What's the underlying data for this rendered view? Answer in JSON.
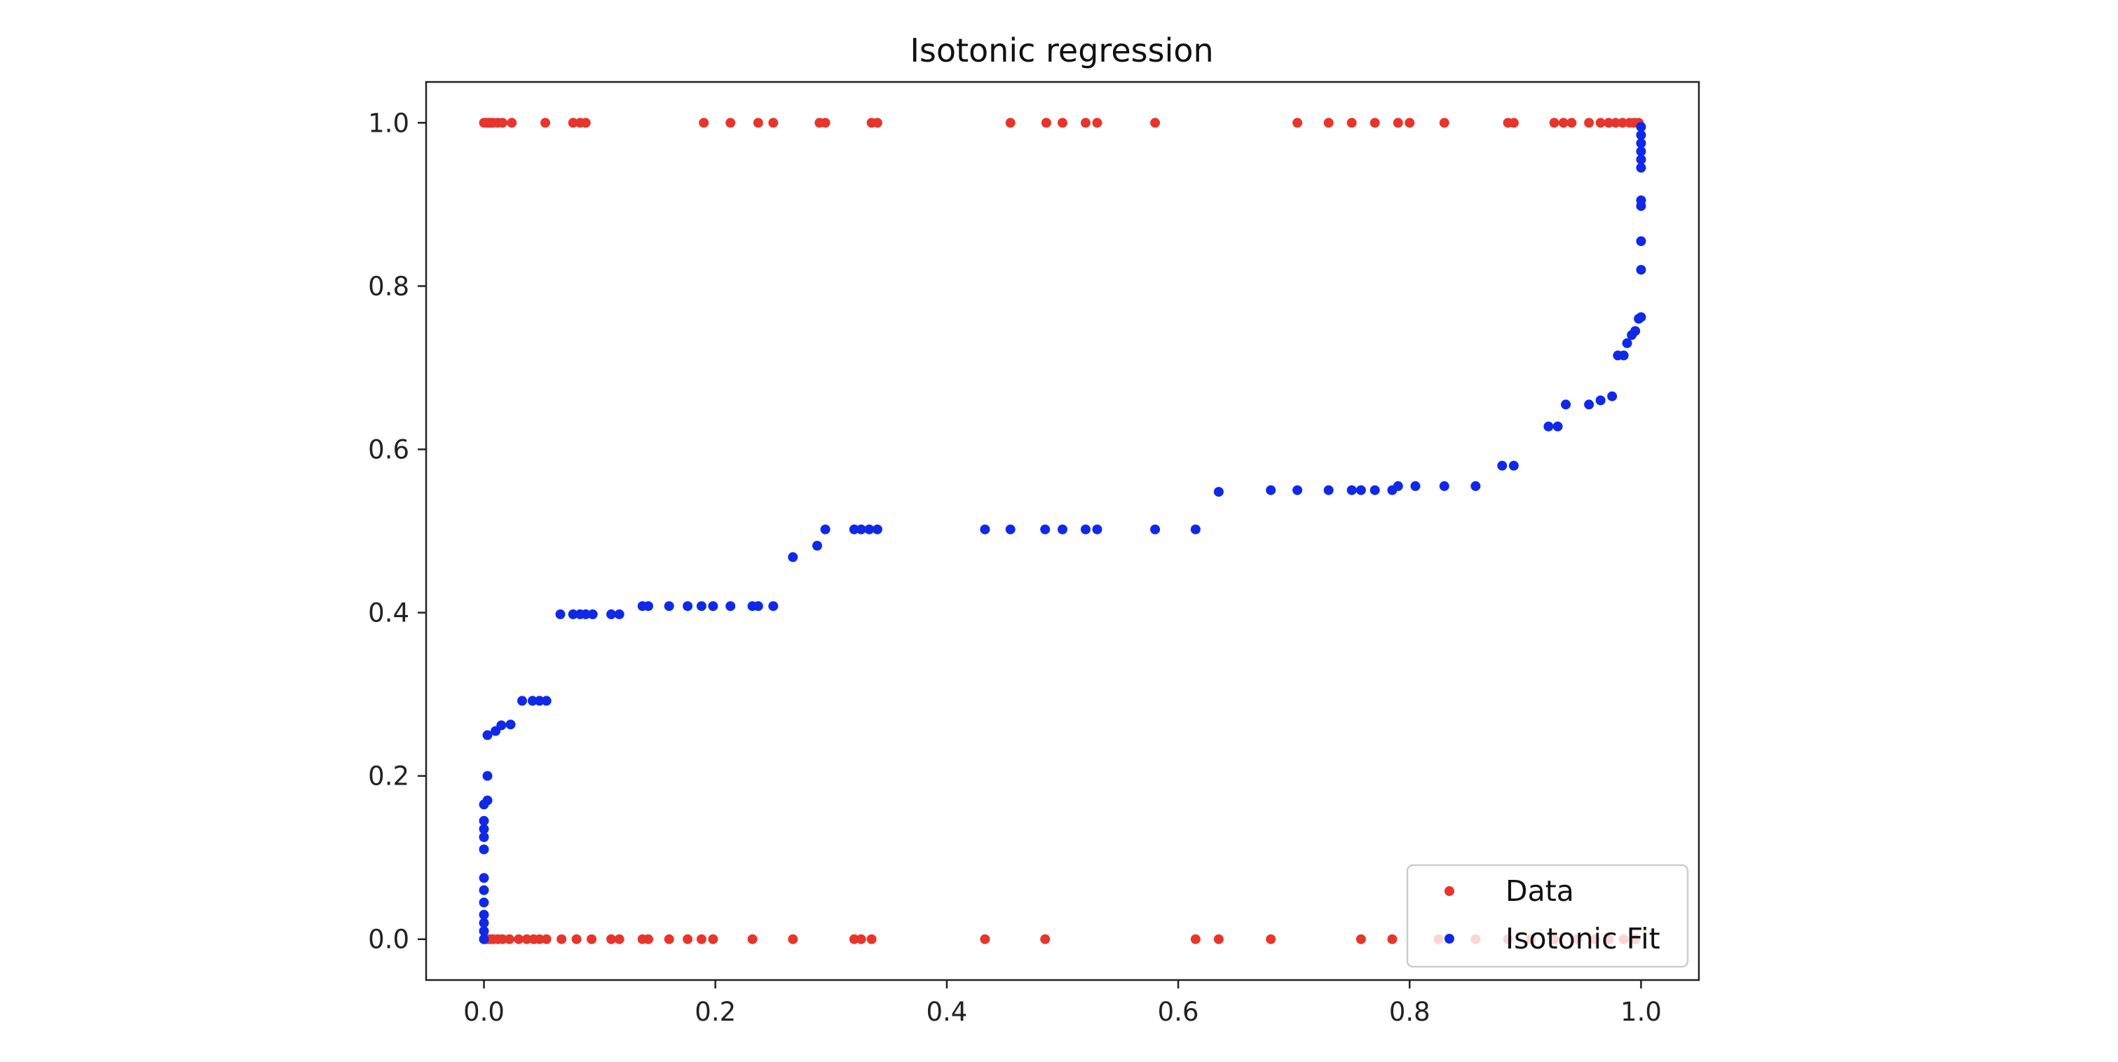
{
  "chart_data": {
    "type": "scatter",
    "title": "Isotonic regression",
    "xlabel": "",
    "ylabel": "",
    "xlim": [
      -0.05,
      1.05
    ],
    "ylim": [
      -0.05,
      1.05
    ],
    "xticks": [
      0.0,
      0.2,
      0.4,
      0.6,
      0.8,
      1.0
    ],
    "yticks": [
      0.0,
      0.2,
      0.4,
      0.6,
      0.8,
      1.0
    ],
    "xtick_labels": [
      "0.0",
      "0.2",
      "0.4",
      "0.6",
      "0.8",
      "1.0"
    ],
    "ytick_labels": [
      "0.0",
      "0.2",
      "0.4",
      "0.6",
      "0.8",
      "1.0"
    ],
    "grid": false,
    "legend": {
      "position": "lower right",
      "entries": [
        "Data",
        "Isotonic Fit"
      ]
    },
    "series": [
      {
        "name": "Data",
        "color": "#e8352b",
        "points": [
          [
            0.0,
            1
          ],
          [
            0.002,
            1
          ],
          [
            0.004,
            1
          ],
          [
            0.006,
            1
          ],
          [
            0.008,
            1
          ],
          [
            0.012,
            1
          ],
          [
            0.016,
            1
          ],
          [
            0.024,
            1
          ],
          [
            0.053,
            1
          ],
          [
            0.077,
            1
          ],
          [
            0.083,
            1
          ],
          [
            0.088,
            1
          ],
          [
            0.19,
            1
          ],
          [
            0.213,
            1
          ],
          [
            0.237,
            1
          ],
          [
            0.25,
            1
          ],
          [
            0.29,
            1
          ],
          [
            0.295,
            1
          ],
          [
            0.335,
            1
          ],
          [
            0.34,
            1
          ],
          [
            0.455,
            1
          ],
          [
            0.486,
            1
          ],
          [
            0.5,
            1
          ],
          [
            0.52,
            1
          ],
          [
            0.53,
            1
          ],
          [
            0.58,
            1
          ],
          [
            0.703,
            1
          ],
          [
            0.73,
            1
          ],
          [
            0.75,
            1
          ],
          [
            0.77,
            1
          ],
          [
            0.79,
            1
          ],
          [
            0.8,
            1
          ],
          [
            0.83,
            1
          ],
          [
            0.885,
            1
          ],
          [
            0.89,
            1
          ],
          [
            0.925,
            1
          ],
          [
            0.933,
            1
          ],
          [
            0.94,
            1
          ],
          [
            0.955,
            1
          ],
          [
            0.965,
            1
          ],
          [
            0.972,
            1
          ],
          [
            0.978,
            1
          ],
          [
            0.984,
            1
          ],
          [
            0.99,
            1
          ],
          [
            0.994,
            1
          ],
          [
            0.998,
            1
          ],
          [
            0.0,
            0
          ],
          [
            0.002,
            0
          ],
          [
            0.004,
            0
          ],
          [
            0.006,
            0
          ],
          [
            0.008,
            0
          ],
          [
            0.012,
            0
          ],
          [
            0.016,
            0
          ],
          [
            0.022,
            0
          ],
          [
            0.03,
            0
          ],
          [
            0.037,
            0
          ],
          [
            0.043,
            0
          ],
          [
            0.048,
            0
          ],
          [
            0.054,
            0
          ],
          [
            0.067,
            0
          ],
          [
            0.08,
            0
          ],
          [
            0.093,
            0
          ],
          [
            0.11,
            0
          ],
          [
            0.117,
            0
          ],
          [
            0.137,
            0
          ],
          [
            0.142,
            0
          ],
          [
            0.16,
            0
          ],
          [
            0.176,
            0
          ],
          [
            0.188,
            0
          ],
          [
            0.198,
            0
          ],
          [
            0.232,
            0
          ],
          [
            0.267,
            0
          ],
          [
            0.32,
            0
          ],
          [
            0.326,
            0
          ],
          [
            0.335,
            0
          ],
          [
            0.433,
            0
          ],
          [
            0.485,
            0
          ],
          [
            0.615,
            0
          ],
          [
            0.635,
            0
          ],
          [
            0.68,
            0
          ],
          [
            0.758,
            0
          ],
          [
            0.785,
            0
          ],
          [
            0.825,
            0
          ],
          [
            0.857,
            0
          ],
          [
            0.885,
            0
          ],
          [
            0.905,
            0
          ],
          [
            0.925,
            0
          ],
          [
            0.945,
            0
          ],
          [
            0.96,
            0
          ],
          [
            0.972,
            0
          ],
          [
            0.985,
            0
          ],
          [
            0.995,
            0
          ]
        ]
      },
      {
        "name": "Isotonic Fit",
        "color": "#1029e8",
        "points": [
          [
            0.0,
            0.0
          ],
          [
            0.0,
            0.01
          ],
          [
            0.0,
            0.02
          ],
          [
            0.0,
            0.03
          ],
          [
            0.0,
            0.045
          ],
          [
            0.0,
            0.06
          ],
          [
            0.0,
            0.075
          ],
          [
            0.0,
            0.11
          ],
          [
            0.0,
            0.125
          ],
          [
            0.0,
            0.135
          ],
          [
            0.0,
            0.145
          ],
          [
            0.0,
            0.165
          ],
          [
            0.003,
            0.17
          ],
          [
            0.003,
            0.2
          ],
          [
            0.003,
            0.25
          ],
          [
            0.01,
            0.255
          ],
          [
            0.015,
            0.262
          ],
          [
            0.023,
            0.263
          ],
          [
            0.033,
            0.292
          ],
          [
            0.042,
            0.292
          ],
          [
            0.048,
            0.292
          ],
          [
            0.054,
            0.292
          ],
          [
            0.066,
            0.398
          ],
          [
            0.077,
            0.398
          ],
          [
            0.083,
            0.398
          ],
          [
            0.088,
            0.398
          ],
          [
            0.094,
            0.398
          ],
          [
            0.11,
            0.398
          ],
          [
            0.117,
            0.398
          ],
          [
            0.137,
            0.408
          ],
          [
            0.142,
            0.408
          ],
          [
            0.16,
            0.408
          ],
          [
            0.176,
            0.408
          ],
          [
            0.188,
            0.408
          ],
          [
            0.198,
            0.408
          ],
          [
            0.213,
            0.408
          ],
          [
            0.232,
            0.408
          ],
          [
            0.237,
            0.408
          ],
          [
            0.25,
            0.408
          ],
          [
            0.267,
            0.468
          ],
          [
            0.288,
            0.482
          ],
          [
            0.295,
            0.502
          ],
          [
            0.32,
            0.502
          ],
          [
            0.326,
            0.502
          ],
          [
            0.333,
            0.502
          ],
          [
            0.34,
            0.502
          ],
          [
            0.433,
            0.502
          ],
          [
            0.455,
            0.502
          ],
          [
            0.485,
            0.502
          ],
          [
            0.5,
            0.502
          ],
          [
            0.52,
            0.502
          ],
          [
            0.53,
            0.502
          ],
          [
            0.58,
            0.502
          ],
          [
            0.615,
            0.502
          ],
          [
            0.635,
            0.548
          ],
          [
            0.68,
            0.55
          ],
          [
            0.703,
            0.55
          ],
          [
            0.73,
            0.55
          ],
          [
            0.75,
            0.55
          ],
          [
            0.758,
            0.55
          ],
          [
            0.77,
            0.55
          ],
          [
            0.785,
            0.55
          ],
          [
            0.79,
            0.555
          ],
          [
            0.805,
            0.555
          ],
          [
            0.83,
            0.555
          ],
          [
            0.857,
            0.555
          ],
          [
            0.88,
            0.58
          ],
          [
            0.89,
            0.58
          ],
          [
            0.92,
            0.628
          ],
          [
            0.928,
            0.628
          ],
          [
            0.935,
            0.655
          ],
          [
            0.955,
            0.655
          ],
          [
            0.965,
            0.66
          ],
          [
            0.975,
            0.665
          ],
          [
            0.98,
            0.715
          ],
          [
            0.985,
            0.715
          ],
          [
            0.988,
            0.73
          ],
          [
            0.992,
            0.74
          ],
          [
            0.995,
            0.745
          ],
          [
            0.998,
            0.76
          ],
          [
            1.0,
            0.762
          ],
          [
            1.0,
            0.82
          ],
          [
            1.0,
            0.855
          ],
          [
            1.0,
            0.898
          ],
          [
            1.0,
            0.905
          ],
          [
            1.0,
            0.945
          ],
          [
            1.0,
            0.955
          ],
          [
            1.0,
            0.965
          ],
          [
            1.0,
            0.975
          ],
          [
            1.0,
            0.985
          ],
          [
            1.0,
            0.995
          ]
        ]
      }
    ]
  }
}
